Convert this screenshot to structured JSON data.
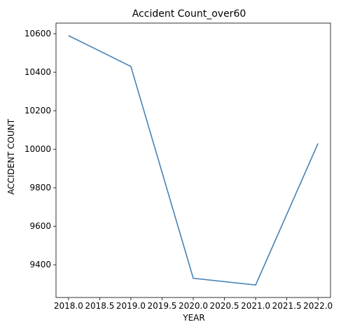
{
  "chart_data": {
    "type": "line",
    "title": "Accident Count_over60",
    "xlabel": "YEAR",
    "ylabel": "ACCIDENT COUNT",
    "x": [
      2018,
      2019,
      2020,
      2021,
      2022
    ],
    "series": [
      {
        "values": [
          10590,
          10430,
          9330,
          9295,
          10030
        ],
        "color": "#4682b4"
      }
    ],
    "xlim": [
      2017.8,
      2022.2
    ],
    "ylim": [
      9230,
      10655
    ],
    "xticks": [
      2018.0,
      2018.5,
      2019.0,
      2019.5,
      2020.0,
      2020.5,
      2021.0,
      2021.5,
      2022.0
    ],
    "xtick_labels": [
      "2018.0",
      "2018.5",
      "2019.0",
      "2019.5",
      "2020.0",
      "2020.5",
      "2021.0",
      "2021.5",
      "2022.0"
    ],
    "yticks": [
      9400,
      9600,
      9800,
      10000,
      10200,
      10400,
      10600
    ],
    "ytick_labels": [
      "9400",
      "9600",
      "9800",
      "10000",
      "10200",
      "10400",
      "10600"
    ],
    "grid": false,
    "legend": "none"
  }
}
